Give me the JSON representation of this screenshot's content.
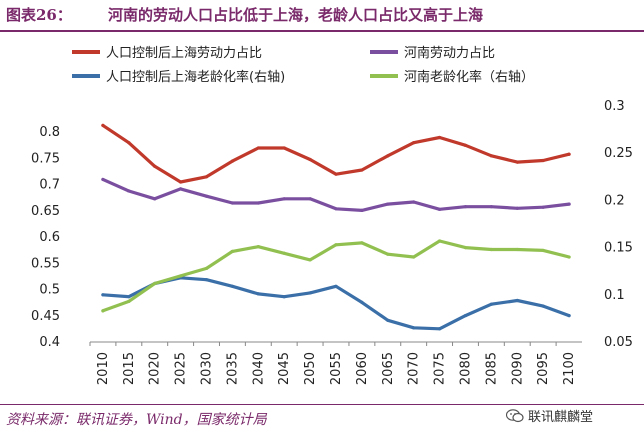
{
  "header": {
    "label": "图表26：",
    "title": "河南的劳动人口占比低于上海，老龄人口占比又高于上海"
  },
  "footer": {
    "source": "资料来源：联讯证券，Wind，国家统计局",
    "watermark": "联讯麒麟堂"
  },
  "colors": {
    "brand": "#7a2a6a",
    "sh_labor": "#c0392b",
    "hn_labor": "#7b4fa0",
    "sh_aging": "#3a6fa8",
    "hn_aging": "#92c050"
  },
  "chart_data": {
    "type": "line",
    "title": "河南的劳动人口占比低于上海，老龄人口占比又高于上海",
    "x": [
      "2010",
      "2015",
      "2020",
      "2025",
      "2030",
      "2035",
      "2040",
      "2045",
      "2050",
      "2055",
      "2060",
      "2065",
      "2070",
      "2075",
      "2080",
      "2085",
      "2090",
      "2095",
      "2100"
    ],
    "ylim": [
      0.4,
      0.85
    ],
    "yticks": [
      0.4,
      0.45,
      0.5,
      0.55,
      0.6,
      0.65,
      0.7,
      0.75,
      0.8
    ],
    "ytick_labels": [
      "0.4",
      "0.45",
      "0.5",
      "0.55",
      "0.6",
      "0.65",
      "0.7",
      "0.75",
      "0.8"
    ],
    "y2lim": [
      0.05,
      0.3
    ],
    "y2ticks": [
      0.05,
      0.1,
      0.15,
      0.2,
      0.25,
      0.3
    ],
    "y2tick_labels": [
      "0.05",
      "0.1",
      "0.15",
      "0.2",
      "0.25",
      "0.3"
    ],
    "legend_position": "top",
    "series": [
      {
        "name": "人口控制后上海劳动力占比",
        "axis": "left",
        "color": "#c0392b",
        "values": [
          0.813,
          0.78,
          0.735,
          0.705,
          0.715,
          0.745,
          0.77,
          0.77,
          0.748,
          0.72,
          0.728,
          0.755,
          0.78,
          0.79,
          0.775,
          0.755,
          0.743,
          0.746,
          0.758
        ]
      },
      {
        "name": "河南劳动力占比",
        "axis": "left",
        "color": "#7b4fa0",
        "values": [
          0.71,
          0.688,
          0.673,
          0.692,
          0.678,
          0.665,
          0.665,
          0.673,
          0.673,
          0.654,
          0.651,
          0.663,
          0.667,
          0.653,
          0.658,
          0.658,
          0.655,
          0.657,
          0.663
        ]
      },
      {
        "name": "人口控制后上海老龄化率(右轴)",
        "axis": "right",
        "color": "#3a6fa8",
        "values": [
          0.1,
          0.098,
          0.112,
          0.118,
          0.116,
          0.109,
          0.101,
          0.098,
          0.102,
          0.109,
          0.092,
          0.073,
          0.065,
          0.064,
          0.078,
          0.09,
          0.094,
          0.088,
          0.078
        ]
      },
      {
        "name": "河南老龄化率（右轴）",
        "axis": "right",
        "color": "#92c050",
        "values": [
          0.083,
          0.093,
          0.112,
          0.12,
          0.128,
          0.146,
          0.151,
          0.144,
          0.137,
          0.153,
          0.155,
          0.143,
          0.14,
          0.157,
          0.15,
          0.148,
          0.148,
          0.147,
          0.14
        ]
      }
    ]
  }
}
